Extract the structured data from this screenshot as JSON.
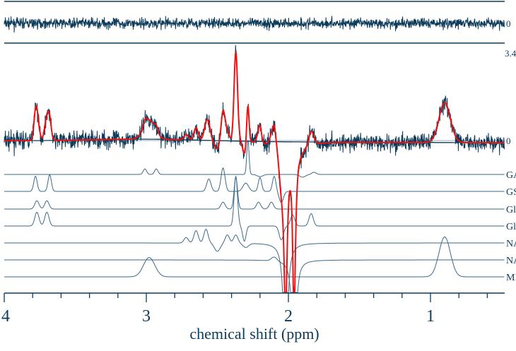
{
  "chart_data": {
    "type": "line",
    "title": "",
    "xlabel": "chemical shift (ppm)",
    "ylabel": "",
    "xlim": [
      4.0,
      0.48
    ],
    "x_reversed": true,
    "x_ticks": [
      "4",
      "3",
      "2",
      "1"
    ],
    "x_tick_values": [
      4,
      3,
      2,
      1
    ],
    "x_minor_tick_step": 0.2,
    "grid": false,
    "residual_panel": {
      "zero_label": "0"
    },
    "main_panel": {
      "top_label": "3.4",
      "zero_label": "0",
      "ylim": [
        -5.5,
        3.4
      ]
    },
    "colors": {
      "data": "#0d3b5a",
      "fit": "#ee1111",
      "baseline": "#0d3b5a",
      "components": "#3a6a88",
      "frame": "#0d3b5a"
    },
    "series": [
      {
        "role": "data (noisy spectrum)"
      },
      {
        "role": "fit"
      },
      {
        "role": "baseline"
      }
    ],
    "components": [
      {
        "label": "GA",
        "peaks": [
          [
            3.01,
            0.2,
            0.012
          ],
          [
            2.93,
            0.2,
            0.012
          ],
          [
            2.285,
            1.25,
            0.008
          ],
          [
            2.2,
            -0.08,
            0.02
          ],
          [
            1.9,
            -0.1,
            0.02
          ],
          [
            1.82,
            0.08,
            0.015
          ]
        ]
      },
      {
        "label": "GS",
        "peaks": [
          [
            3.78,
            0.55,
            0.012
          ],
          [
            3.68,
            0.6,
            0.012
          ],
          [
            2.56,
            0.45,
            0.015
          ],
          [
            2.46,
            0.85,
            0.014
          ],
          [
            2.3,
            0.3,
            0.02
          ],
          [
            2.2,
            0.5,
            0.012
          ],
          [
            2.1,
            0.55,
            0.012
          ],
          [
            2.05,
            -0.4,
            0.015
          ]
        ]
      },
      {
        "label": "Gl",
        "peaks": [
          [
            3.77,
            0.3,
            0.015
          ],
          [
            3.7,
            0.3,
            0.015
          ],
          [
            2.46,
            0.25,
            0.015
          ],
          [
            2.37,
            1.15,
            0.012
          ],
          [
            2.21,
            0.25,
            0.015
          ],
          [
            2.12,
            0.25,
            0.015
          ]
        ]
      },
      {
        "label": "Gl",
        "peaks": [
          [
            3.77,
            0.5,
            0.015
          ],
          [
            3.7,
            0.5,
            0.015
          ],
          [
            2.37,
            1.8,
            0.012
          ],
          [
            2.31,
            -0.55,
            0.012
          ],
          [
            2.05,
            -0.5,
            0.015
          ],
          [
            1.97,
            0.4,
            0.015
          ],
          [
            1.84,
            0.45,
            0.015
          ]
        ]
      },
      {
        "label": "NA",
        "peaks": [
          [
            2.72,
            0.2,
            0.015
          ],
          [
            2.65,
            0.45,
            0.015
          ],
          [
            2.58,
            0.5,
            0.015
          ],
          [
            2.5,
            -0.3,
            0.02
          ],
          [
            2.43,
            0.3,
            0.015
          ],
          [
            2.37,
            0.3,
            0.015
          ],
          [
            2.3,
            -0.15,
            0.02
          ],
          [
            2.02,
            -6.0,
            0.014,
            "L"
          ]
        ]
      },
      {
        "label": "NA",
        "peaks": [
          [
            2.1,
            0.15,
            0.02
          ],
          [
            1.96,
            -6.5,
            0.012,
            "L"
          ]
        ]
      },
      {
        "label": "MI",
        "peaks": [
          [
            2.98,
            0.7,
            0.04
          ],
          [
            0.9,
            1.45,
            0.04
          ]
        ]
      }
    ]
  }
}
